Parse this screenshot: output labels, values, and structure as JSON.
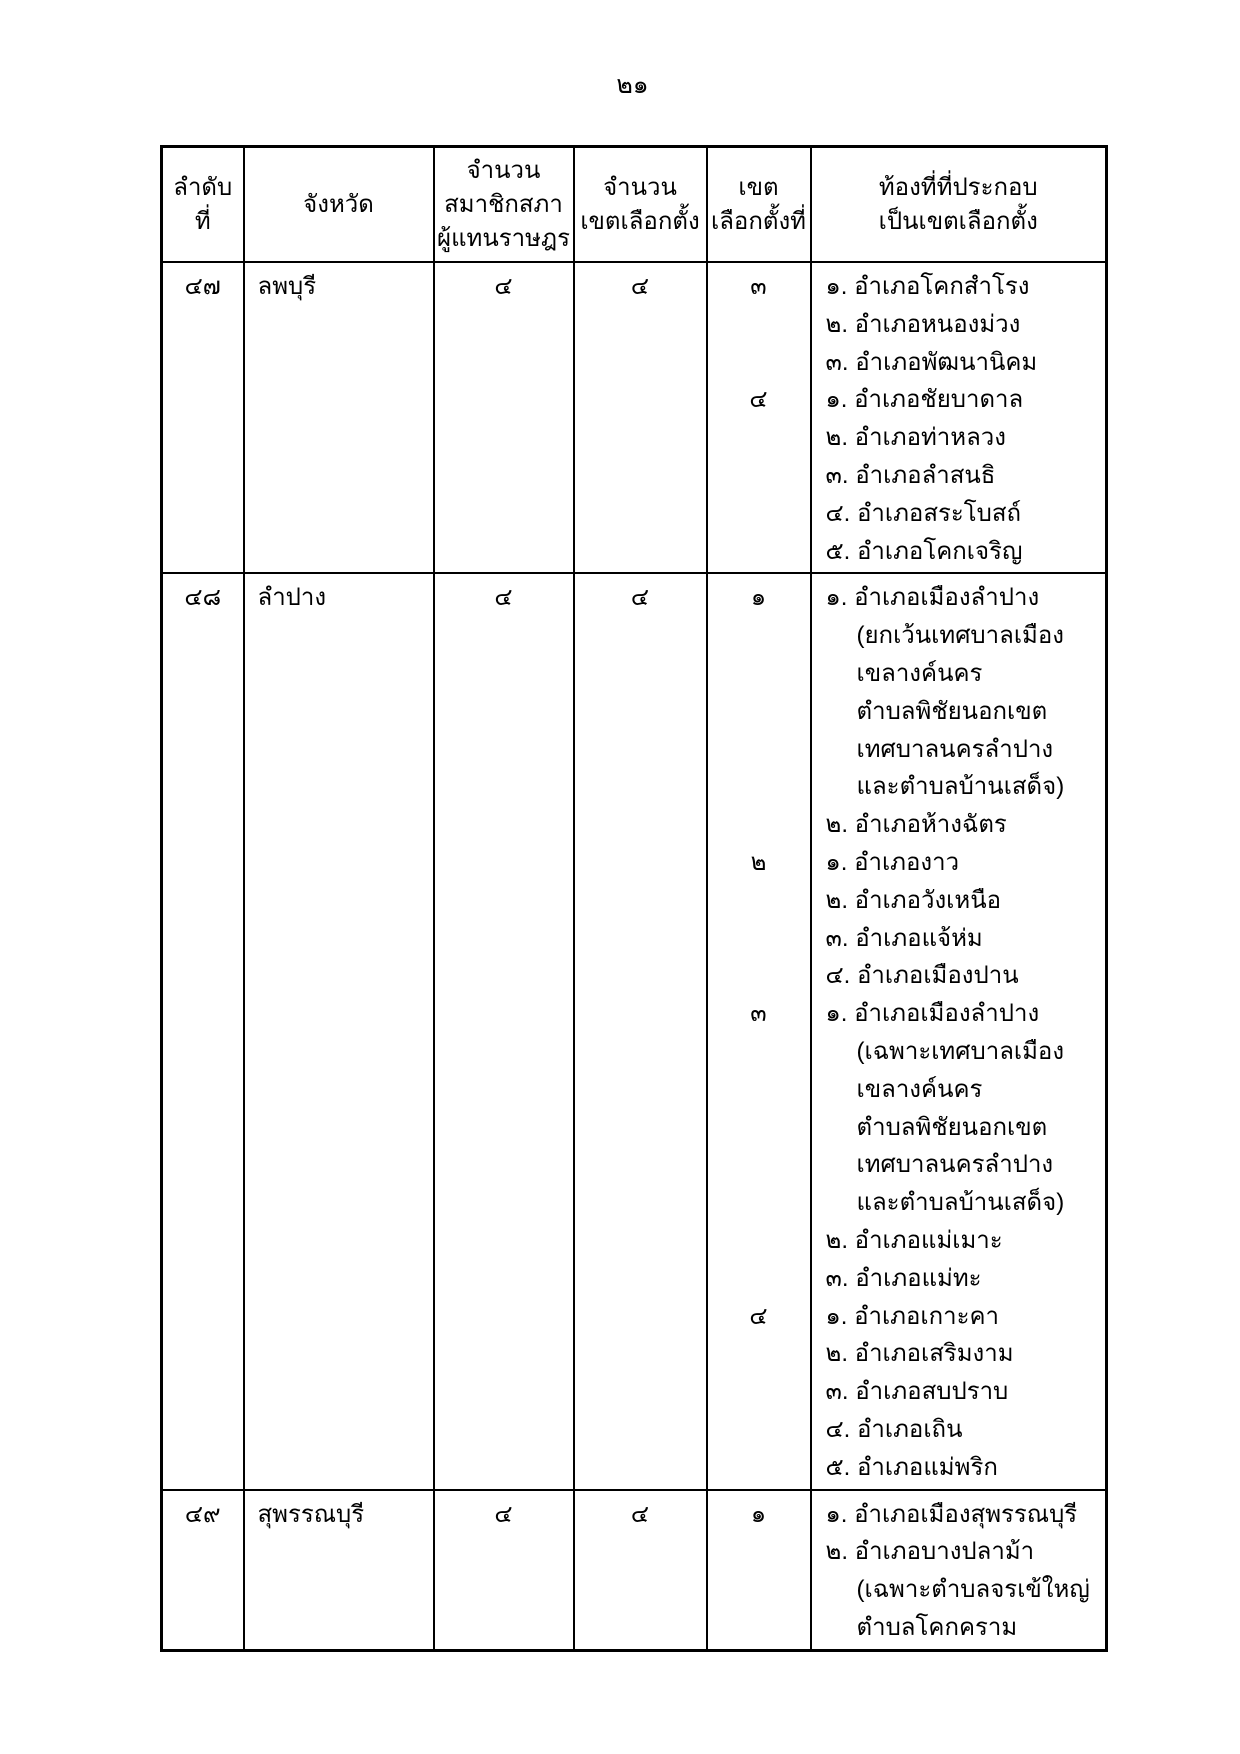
{
  "page": {
    "number": "๒๑"
  },
  "table": {
    "headers": {
      "order": [
        "ลำดับ",
        "ที่"
      ],
      "province": [
        "จังหวัด"
      ],
      "mp_count": [
        "จำนวน",
        "สมาชิกสภา",
        "ผู้แทนราษฎร"
      ],
      "district_count": [
        "จำนวน",
        "เขตเลือกตั้ง"
      ],
      "zone_no": [
        "เขต",
        "เลือกตั้งที่"
      ],
      "areas": [
        "ท้องที่ที่ประกอบ",
        "เป็นเขตเลือกตั้ง"
      ]
    },
    "rows": [
      {
        "order": "๔๗",
        "province": "ลพบุรี",
        "mp_count": "๔",
        "district_count": "๔",
        "zones": [
          {
            "zone_no": "๓",
            "entries": [
              {
                "label": "๑.",
                "name": "อำเภอโคกสำโรง"
              },
              {
                "label": "๒.",
                "name": "อำเภอหนองม่วง"
              },
              {
                "label": "๓.",
                "name": "อำเภอพัฒนานิคม"
              }
            ]
          },
          {
            "zone_no": "๔",
            "entries": [
              {
                "label": "๑.",
                "name": "อำเภอชัยบาดาล"
              },
              {
                "label": "๒.",
                "name": "อำเภอท่าหลวง"
              },
              {
                "label": "๓.",
                "name": "อำเภอลำสนธิ"
              },
              {
                "label": "๔.",
                "name": "อำเภอสระโบสถ์"
              },
              {
                "label": "๕.",
                "name": "อำเภอโคกเจริญ"
              }
            ]
          }
        ]
      },
      {
        "order": "๔๘",
        "province": "ลำปาง",
        "mp_count": "๔",
        "district_count": "๔",
        "zones": [
          {
            "zone_no": "๑",
            "entries": [
              {
                "label": "๑.",
                "name": "อำเภอเมืองลำปาง",
                "continuation": [
                  "(ยกเว้นเทศบาลเมือง",
                  "เขลางค์นคร",
                  "ตำบลพิชัยนอกเขต",
                  "เทศบาลนครลำปาง",
                  "และตำบลบ้านเสด็จ)"
                ]
              },
              {
                "label": "๒.",
                "name": "อำเภอห้างฉัตร"
              }
            ]
          },
          {
            "zone_no": "๒",
            "entries": [
              {
                "label": "๑.",
                "name": "อำเภองาว"
              },
              {
                "label": "๒.",
                "name": "อำเภอวังเหนือ"
              },
              {
                "label": "๓.",
                "name": "อำเภอแจ้ห่ม"
              },
              {
                "label": "๔.",
                "name": "อำเภอเมืองปาน"
              }
            ]
          },
          {
            "zone_no": "๓",
            "entries": [
              {
                "label": "๑.",
                "name": "อำเภอเมืองลำปาง",
                "continuation": [
                  "(เฉพาะเทศบาลเมือง",
                  "เขลางค์นคร",
                  "ตำบลพิชัยนอกเขต",
                  "เทศบาลนครลำปาง",
                  "และตำบลบ้านเสด็จ)"
                ]
              },
              {
                "label": "๒.",
                "name": "อำเภอแม่เมาะ"
              },
              {
                "label": "๓.",
                "name": "อำเภอแม่ทะ"
              }
            ]
          },
          {
            "zone_no": "๔",
            "entries": [
              {
                "label": "๑.",
                "name": "อำเภอเกาะคา"
              },
              {
                "label": "๒.",
                "name": "อำเภอเสริมงาม"
              },
              {
                "label": "๓.",
                "name": "อำเภอสบปราบ"
              },
              {
                "label": "๔.",
                "name": "อำเภอเถิน"
              },
              {
                "label": "๕.",
                "name": "อำเภอแม่พริก"
              }
            ]
          }
        ]
      },
      {
        "order": "๔๙",
        "province": "สุพรรณบุรี",
        "mp_count": "๔",
        "district_count": "๔",
        "zones": [
          {
            "zone_no": "๑",
            "entries": [
              {
                "label": "๑.",
                "name": "อำเภอเมืองสุพรรณบุรี"
              },
              {
                "label": "๒.",
                "name": "อำเภอบางปลาม้า",
                "continuation": [
                  "(เฉพาะตำบลจรเข้ใหญ่",
                  "ตำบลโคกคราม"
                ]
              }
            ]
          }
        ]
      }
    ]
  }
}
